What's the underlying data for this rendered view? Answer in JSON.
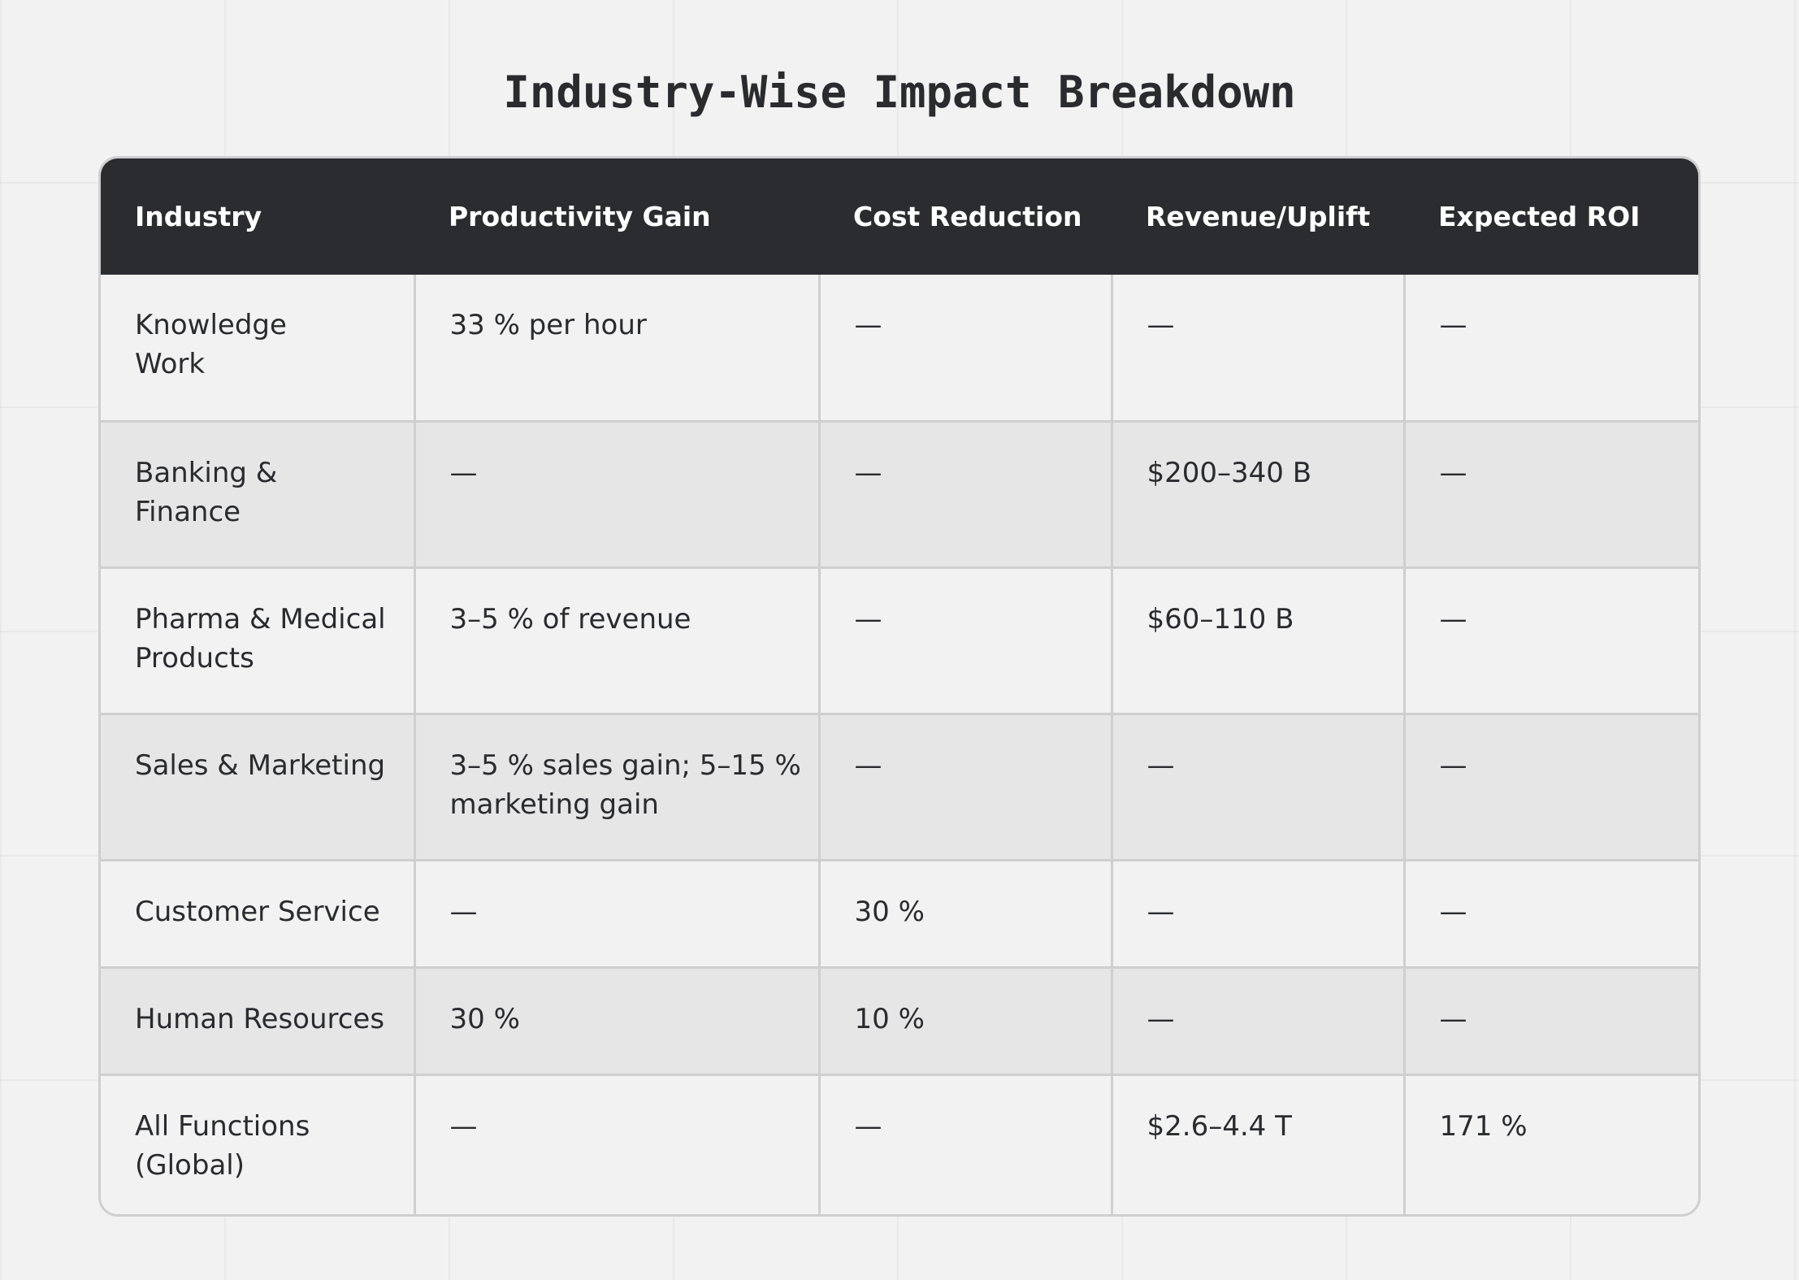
{
  "title": "Industry-Wise Impact Breakdown",
  "table": {
    "columns": [
      "Industry",
      "Productivity Gain",
      "Cost Reduction",
      "Revenue/Uplift",
      "Expected ROI"
    ],
    "rows": [
      [
        "Knowledge Work",
        "33 % per hour",
        "—",
        "—",
        "—"
      ],
      [
        "Banking & Finance",
        "—",
        "—",
        "$200–340 B",
        "—"
      ],
      [
        "Pharma & Medical Products",
        "3–5 % of revenue",
        "—",
        "$60–110 B",
        "—"
      ],
      [
        "Sales & Marketing",
        "3–5 % sales gain; 5–15 % marketing gain",
        "—",
        "—",
        "—"
      ],
      [
        "Customer Service",
        "—",
        "30 %",
        "—",
        "—"
      ],
      [
        "Human Resources",
        "30 %",
        "10 %",
        "—",
        "—"
      ],
      [
        "All Functions (Global)",
        "—",
        "—",
        "$2.6–4.4 T",
        "171 %"
      ]
    ]
  }
}
